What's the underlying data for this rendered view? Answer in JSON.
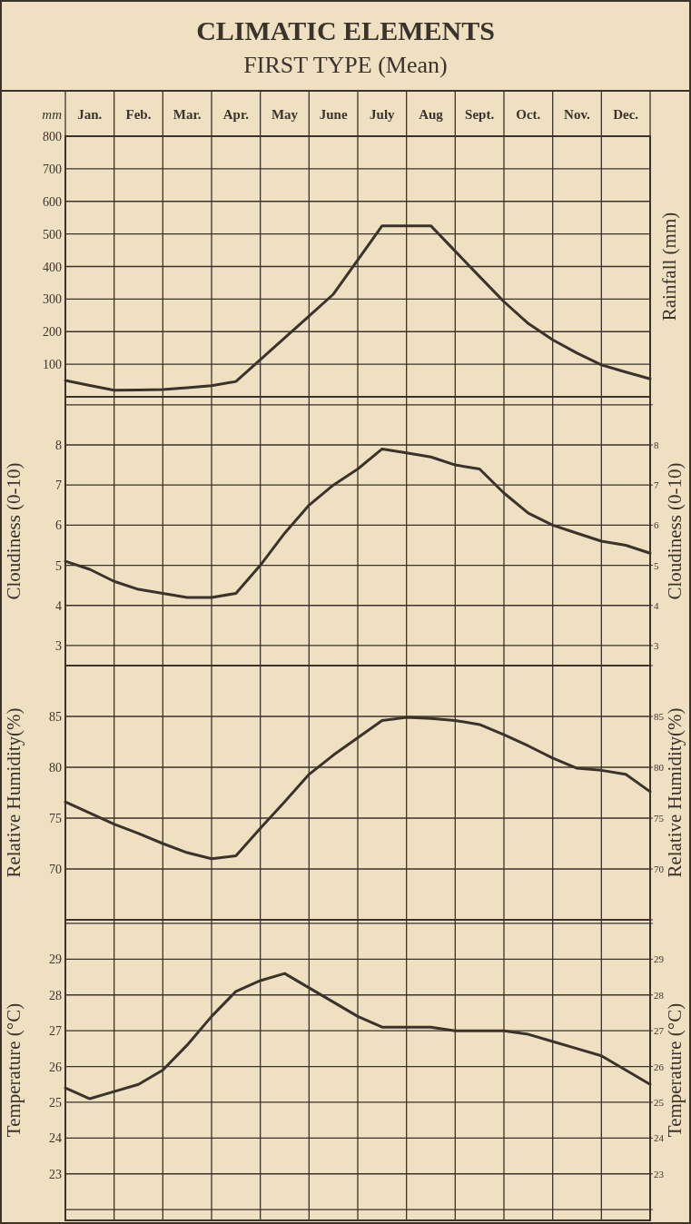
{
  "chart_data": [
    {
      "type": "line",
      "title": "CLIMATIC ELEMENTS",
      "subtitle": "FIRST TYPE (Mean)",
      "ylabel": "mm",
      "y2label": "Rainfall (mm)",
      "categories": [
        null,
        "Jan.",
        null,
        "Feb.",
        null,
        "Mar.",
        null,
        "Apr.",
        null,
        "May",
        null,
        "June",
        null,
        "July",
        null,
        "Aug",
        null,
        "Sept.",
        null,
        "Oct.",
        null,
        "Nov.",
        null,
        "Dec.",
        null
      ],
      "ylim": [
        0,
        800
      ],
      "yticks": [
        100,
        200,
        300,
        400,
        500,
        600,
        700,
        800
      ],
      "grid": true,
      "series": [
        {
          "color": "#3a332b",
          "values": [
            50,
            35,
            20,
            21,
            22,
            28,
            34,
            47,
            114,
            181,
            248,
            315,
            420,
            525,
            525,
            525,
            447,
            369,
            292,
            225,
            175,
            134,
            98,
            76,
            55
          ]
        }
      ]
    },
    {
      "type": "line",
      "ylabel": "Cloudiness (0-10)",
      "y2label": "Cloudiness (0-10)",
      "tick_labels": "y",
      "categories": [
        null,
        null,
        null,
        null,
        null,
        null,
        null,
        null,
        null,
        null,
        null,
        null,
        null,
        null,
        null,
        null,
        null,
        null,
        null,
        null,
        null,
        null,
        null,
        null,
        null
      ],
      "ylim": [
        2.5,
        9.2
      ],
      "yticks": [
        3,
        4,
        5,
        6,
        7,
        8,
        {
          "value": 9,
          "label": null
        }
      ],
      "y2lim": [
        2.5,
        9.2
      ],
      "y2ticks": [
        3,
        4,
        5,
        6,
        7,
        8,
        {
          "value": 9,
          "label": null
        }
      ],
      "grid": true,
      "series": [
        {
          "color": "#3a332b",
          "values": [
            5.1,
            4.9,
            4.6,
            4.4,
            4.3,
            4.2,
            4.2,
            4.3,
            5.0,
            5.8,
            6.5,
            7.0,
            7.4,
            7.9,
            7.8,
            7.7,
            7.5,
            7.4,
            6.8,
            6.3,
            6.0,
            5.8,
            5.6,
            5.5,
            5.3
          ]
        }
      ]
    },
    {
      "type": "line",
      "ylabel": "Relative Humidity(%)",
      "y2label": "Relative Humidity(%)",
      "tick_labels": "y",
      "categories": [
        null,
        null,
        null,
        null,
        null,
        null,
        null,
        null,
        null,
        null,
        null,
        null,
        null,
        null,
        null,
        null,
        null,
        null,
        null,
        null,
        null,
        null,
        null,
        null,
        null
      ],
      "ylim": [
        65,
        90
      ],
      "yticks": [
        {
          "value": 65,
          "label": null
        },
        70,
        75,
        80,
        85,
        {
          "value": 90,
          "label": null
        }
      ],
      "y2lim": [
        65,
        90
      ],
      "y2ticks": [
        {
          "value": 65,
          "label": null
        },
        70,
        75,
        80,
        85,
        {
          "value": 90,
          "label": null
        }
      ],
      "grid": true,
      "series": [
        {
          "color": "#3a332b",
          "values": [
            76.6,
            75.5,
            74.4,
            73.5,
            72.5,
            71.6,
            71,
            71.3,
            74,
            76.6,
            79.3,
            81.2,
            82.9,
            84.6,
            84.9,
            84.8,
            84.6,
            84.2,
            83.2,
            82.1,
            80.9,
            79.9,
            79.7,
            79.3,
            77.6
          ]
        }
      ]
    },
    {
      "type": "line",
      "ylabel": "Temperature (°C)",
      "y2label": "Temperature (°C)",
      "tick_labels": "y",
      "categories": [
        null,
        null,
        null,
        null,
        null,
        null,
        null,
        null,
        null,
        null,
        null,
        null,
        null,
        null,
        null,
        null,
        null,
        null,
        null,
        null,
        null,
        null,
        null,
        null,
        null
      ],
      "ylim": [
        21.7,
        30.1
      ],
      "yticks": [
        {
          "value": 22,
          "label": null
        },
        23,
        24,
        25,
        26,
        27,
        28,
        29,
        {
          "value": 30,
          "label": null
        }
      ],
      "y2lim": [
        21.7,
        30.1
      ],
      "y2ticks": [
        {
          "value": 22,
          "label": null
        },
        23,
        24,
        25,
        26,
        27,
        28,
        29,
        {
          "value": 30,
          "label": null
        }
      ],
      "grid": true,
      "series": [
        {
          "color": "#3a332b",
          "values": [
            25.4,
            25.1,
            25.3,
            25.5,
            25.9,
            26.6,
            27.4,
            28.1,
            28.4,
            28.6,
            28.2,
            27.8,
            27.4,
            27.1,
            27.1,
            27.1,
            27.0,
            27.0,
            27.0,
            26.9,
            26.7,
            26.5,
            26.3,
            25.9,
            25.5
          ]
        }
      ]
    }
  ]
}
